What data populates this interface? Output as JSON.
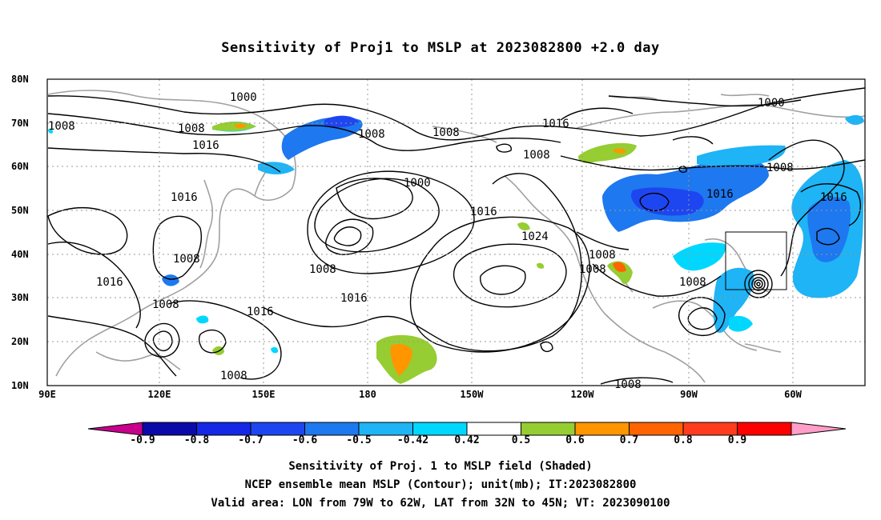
{
  "title": "Sensitivity of Proj1 to MSLP at 2023082800 +2.0 day",
  "lat_labels": [
    "80N",
    "70N",
    "60N",
    "50N",
    "40N",
    "30N",
    "20N",
    "10N"
  ],
  "lon_labels": [
    "90E",
    "120E",
    "150E",
    "180",
    "150W",
    "120W",
    "90W",
    "60W"
  ],
  "contour_labels": [
    "1000",
    "1008",
    "1008",
    "1016",
    "1016",
    "1008",
    "1008",
    "1000",
    "1016",
    "1008",
    "1016",
    "1024",
    "1008",
    "1008",
    "1016",
    "1008",
    "1016",
    "1016",
    "1008",
    "1008",
    "1000",
    "1008",
    "1016",
    "1008",
    "1016",
    "1008",
    "1008"
  ],
  "colorbar": {
    "values": [
      "-0.9",
      "-0.8",
      "-0.7",
      "-0.6",
      "-0.5",
      "-0.42",
      "0.42",
      "0.5",
      "0.6",
      "0.7",
      "0.8",
      "0.9"
    ],
    "colors": [
      "#c8008c",
      "#0a0aa8",
      "#1428e6",
      "#1e46f0",
      "#1e78f0",
      "#1eb4f5",
      "#00d7ff",
      "#ffffff",
      "#96cd32",
      "#ff9600",
      "#ff6400",
      "#ff3c1e",
      "#ff0000",
      "#ff9ec8"
    ]
  },
  "captions": [
    "Sensitivity of Proj. 1 to MSLP field (Shaded)",
    "NCEP ensemble mean MSLP (Contour); unit(mb); IT:2023082800",
    "Valid area: LON from 79W to 62W, LAT from 32N to 45N; VT: 2023090100"
  ]
}
